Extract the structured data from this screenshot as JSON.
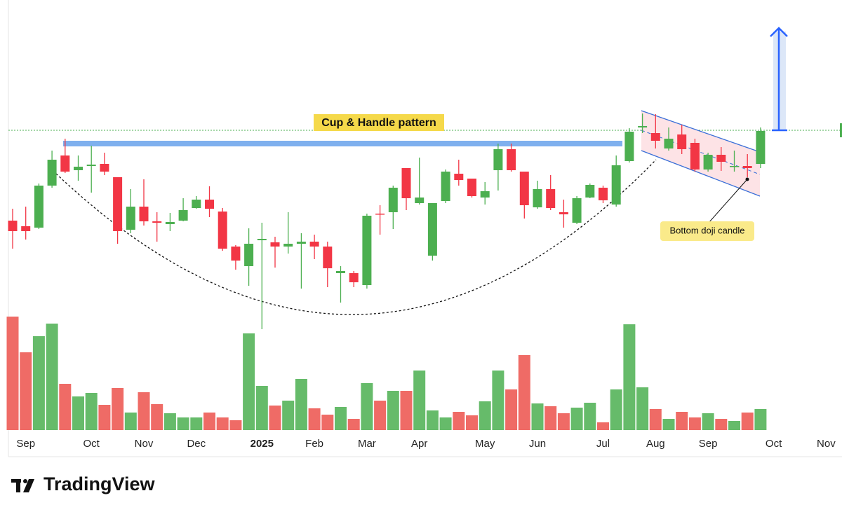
{
  "chart_data": {
    "type": "candlestick",
    "categories": [
      null,
      "Sep",
      null,
      null,
      null,
      null,
      "Oct",
      null,
      null,
      null,
      "Nov",
      null,
      null,
      null,
      "Dec",
      null,
      null,
      null,
      null,
      "2025",
      null,
      null,
      null,
      "Feb",
      null,
      null,
      null,
      "Mar",
      null,
      null,
      null,
      "Apr",
      null,
      null,
      null,
      null,
      "May",
      null,
      null,
      null,
      "Jun",
      null,
      null,
      null,
      null,
      "Jul",
      null,
      null,
      null,
      "Aug",
      null,
      null,
      null,
      "Sep",
      null,
      null,
      null,
      null,
      "Oct",
      null,
      null,
      null,
      "Nov"
    ],
    "open": [
      185,
      177,
      175,
      235,
      278,
      257,
      263,
      266,
      247,
      172,
      205,
      184,
      180,
      185,
      203,
      215,
      198,
      148,
      120,
      157,
      154,
      148,
      152,
      155,
      148,
      110,
      110,
      93,
      195,
      197,
      260,
      210,
      135,
      213,
      252,
      245,
      218,
      257,
      287,
      255,
      204,
      230,
      197,
      182,
      218,
      232,
      208,
      270,
      318,
      310,
      288,
      308,
      296,
      258,
      279,
      262,
      263,
      266,
      null,
      null,
      null,
      null,
      null
    ],
    "high": [
      202,
      205,
      238,
      285,
      302,
      278,
      292,
      282,
      247,
      230,
      244,
      197,
      196,
      217,
      220,
      234,
      203,
      150,
      174,
      182,
      162,
      197,
      167,
      165,
      155,
      120,
      113,
      195,
      207,
      235,
      260,
      275,
      210,
      258,
      272,
      245,
      240,
      295,
      295,
      255,
      242,
      250,
      215,
      220,
      238,
      235,
      278,
      317,
      338,
      337,
      318,
      322,
      302,
      282,
      290,
      285,
      280,
      318,
      null,
      null,
      null,
      null,
      null
    ],
    "low": [
      145,
      158,
      173,
      232,
      253,
      242,
      225,
      250,
      152,
      167,
      178,
      155,
      170,
      184,
      202,
      190,
      142,
      115,
      92,
      30,
      118,
      138,
      88,
      130,
      90,
      68,
      90,
      88,
      165,
      173,
      200,
      208,
      128,
      210,
      235,
      218,
      208,
      228,
      255,
      188,
      202,
      200,
      175,
      180,
      217,
      210,
      205,
      268,
      310,
      288,
      285,
      280,
      255,
      255,
      256,
      255,
      247,
      260,
      null,
      null,
      null,
      null,
      null
    ],
    "close": [
      170,
      170,
      235,
      272,
      255,
      262,
      265,
      255,
      170,
      205,
      184,
      182,
      183,
      200,
      215,
      202,
      145,
      128,
      152,
      159,
      148,
      152,
      155,
      148,
      117,
      113,
      97,
      192,
      194,
      232,
      217,
      218,
      210,
      255,
      243,
      220,
      227,
      287,
      257,
      207,
      230,
      203,
      194,
      217,
      236,
      214,
      264,
      312,
      320,
      299,
      302,
      287,
      258,
      279,
      269,
      263,
      260,
      313,
      null,
      null,
      null,
      null,
      null
    ],
    "volume": [
      162,
      111,
      134,
      152,
      66,
      48,
      53,
      36,
      60,
      25,
      54,
      37,
      24,
      18,
      18,
      25,
      18,
      14,
      138,
      63,
      35,
      42,
      73,
      31,
      22,
      33,
      16,
      67,
      42,
      56,
      56,
      85,
      28,
      18,
      26,
      21,
      41,
      85,
      58,
      107,
      38,
      34,
      24,
      32,
      39,
      11,
      58,
      151,
      61,
      30,
      16,
      26,
      18,
      24,
      16,
      13,
      25,
      30,
      null,
      null,
      null,
      null,
      null
    ],
    "up_color": "#4caf50",
    "down_color": "#f23645",
    "volume_up_color": "#66bb6a",
    "volume_down_color": "#ef6b66",
    "ylim": [
      0,
      500
    ],
    "volume_lim": [
      0,
      170
    ],
    "annotations": [
      "Cup & Handle pattern",
      "Bottom doji candle"
    ],
    "watermark": "TradingView"
  }
}
